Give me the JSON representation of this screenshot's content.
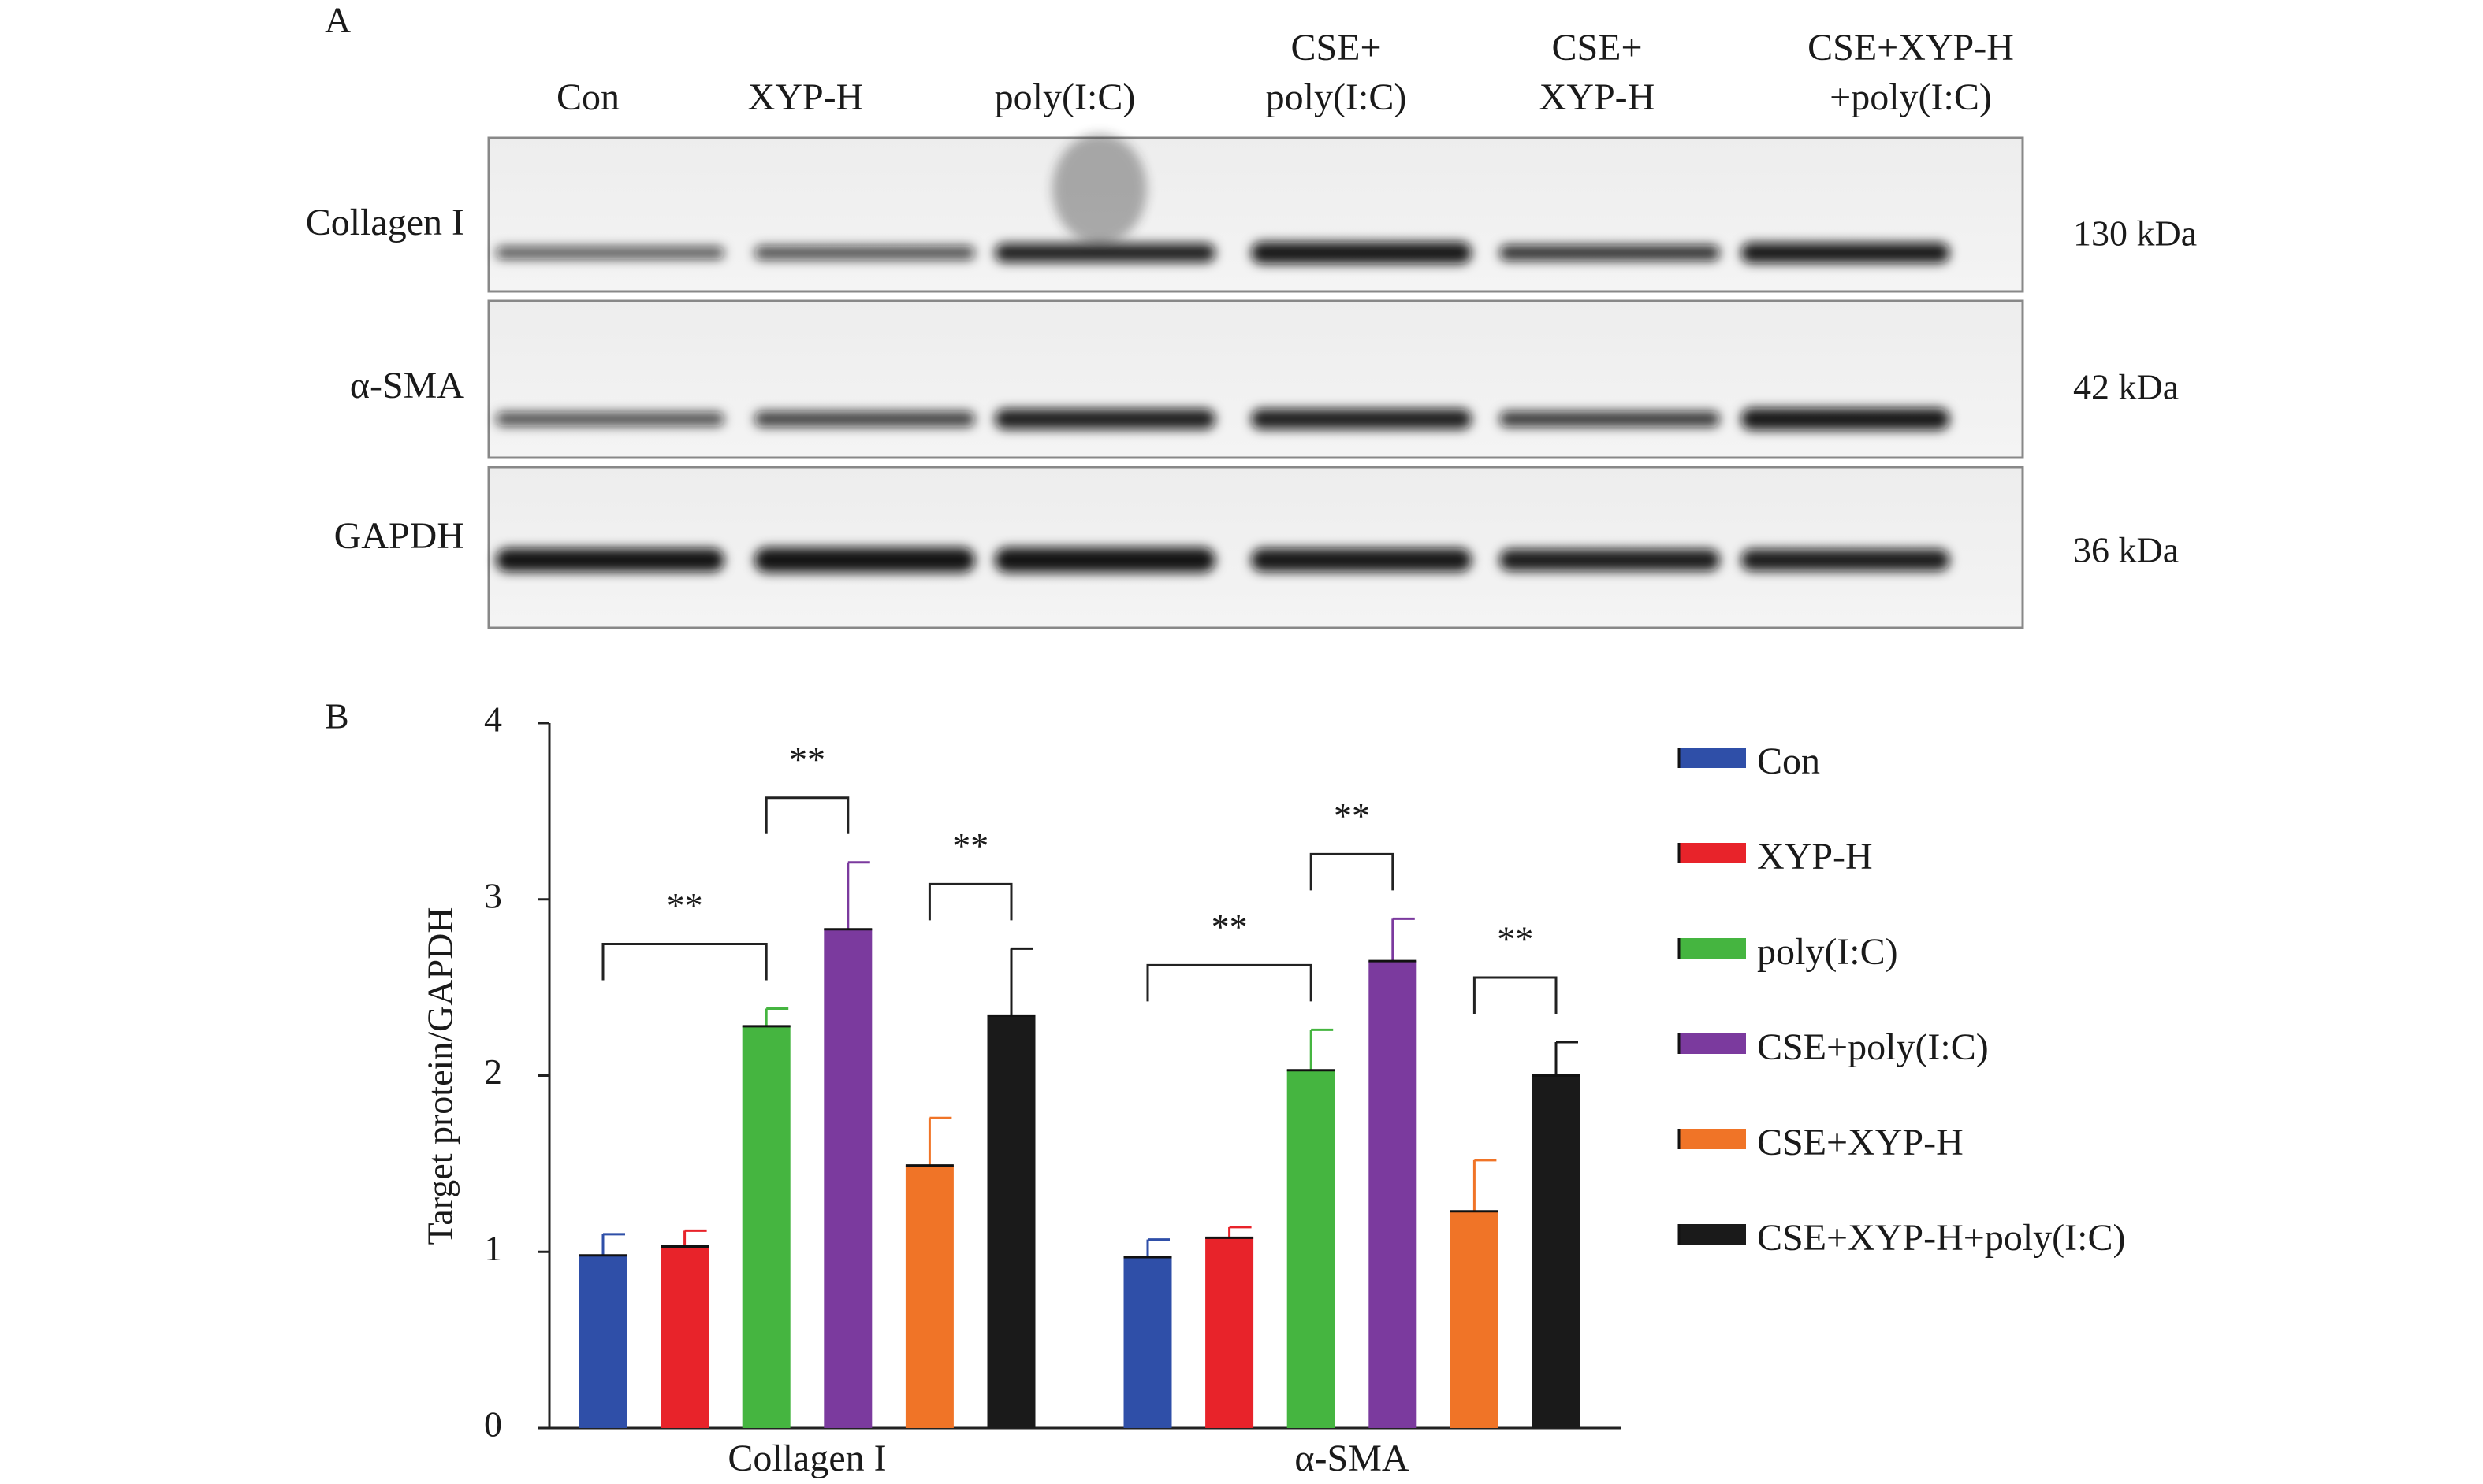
{
  "panel_a": {
    "label": "A",
    "lanes": [
      [
        "Con"
      ],
      [
        "XYP-H"
      ],
      [
        "poly(I:C)"
      ],
      [
        "CSE+",
        "poly(I:C)"
      ],
      [
        "CSE+",
        "XYP-H"
      ],
      [
        "CSE+XYP-H",
        "+poly(I:C)"
      ]
    ],
    "rows": [
      {
        "name": "Collagen I",
        "size": "130 kDa"
      },
      {
        "name": "α-SMA",
        "size": "42 kDa"
      },
      {
        "name": "GAPDH",
        "size": "36 kDa"
      }
    ]
  },
  "chart_data": {
    "type": "bar",
    "panel_label": "B",
    "ylabel": "Target protein/GAPDH",
    "categories": [
      "Collagen I",
      "α-SMA"
    ],
    "series": [
      {
        "name": "Con",
        "color": "#2f4fa8",
        "values": [
          0.98,
          0.97
        ],
        "errors": [
          0.12,
          0.1
        ]
      },
      {
        "name": "XYP-H",
        "color": "#e8232a",
        "values": [
          1.03,
          1.08
        ],
        "errors": [
          0.09,
          0.06
        ]
      },
      {
        "name": "poly(I:C)",
        "color": "#45b540",
        "values": [
          2.28,
          2.03
        ],
        "errors": [
          0.1,
          0.23
        ]
      },
      {
        "name": "CSE+poly(I:C)",
        "color": "#7b3a9e",
        "values": [
          2.83,
          2.65
        ],
        "errors": [
          0.38,
          0.24
        ]
      },
      {
        "name": "CSE+XYP-H",
        "color": "#f07427",
        "values": [
          1.49,
          1.23
        ],
        "errors": [
          0.27,
          0.29
        ]
      },
      {
        "name": "CSE+XYP-H+poly(I:C)",
        "color": "#1a1a1a",
        "values": [
          2.34,
          2.0
        ],
        "errors": [
          0.38,
          0.19
        ]
      }
    ],
    "ylim": [
      0,
      4
    ],
    "yticks": [
      0,
      1,
      2,
      3,
      4
    ],
    "significance": [
      {
        "group": "Collagen I",
        "between": [
          "Con",
          "poly(I:C)"
        ],
        "label": "**"
      },
      {
        "group": "Collagen I",
        "between": [
          "poly(I:C)",
          "CSE+poly(I:C)"
        ],
        "label": "**"
      },
      {
        "group": "Collagen I",
        "between": [
          "CSE+XYP-H",
          "CSE+XYP-H+poly(I:C)"
        ],
        "label": "**"
      },
      {
        "group": "α-SMA",
        "between": [
          "Con",
          "poly(I:C)"
        ],
        "label": "**"
      },
      {
        "group": "α-SMA",
        "between": [
          "poly(I:C)",
          "CSE+poly(I:C)"
        ],
        "label": "**"
      },
      {
        "group": "α-SMA",
        "between": [
          "CSE+XYP-H",
          "CSE+XYP-H+poly(I:C)"
        ],
        "label": "**"
      }
    ]
  }
}
